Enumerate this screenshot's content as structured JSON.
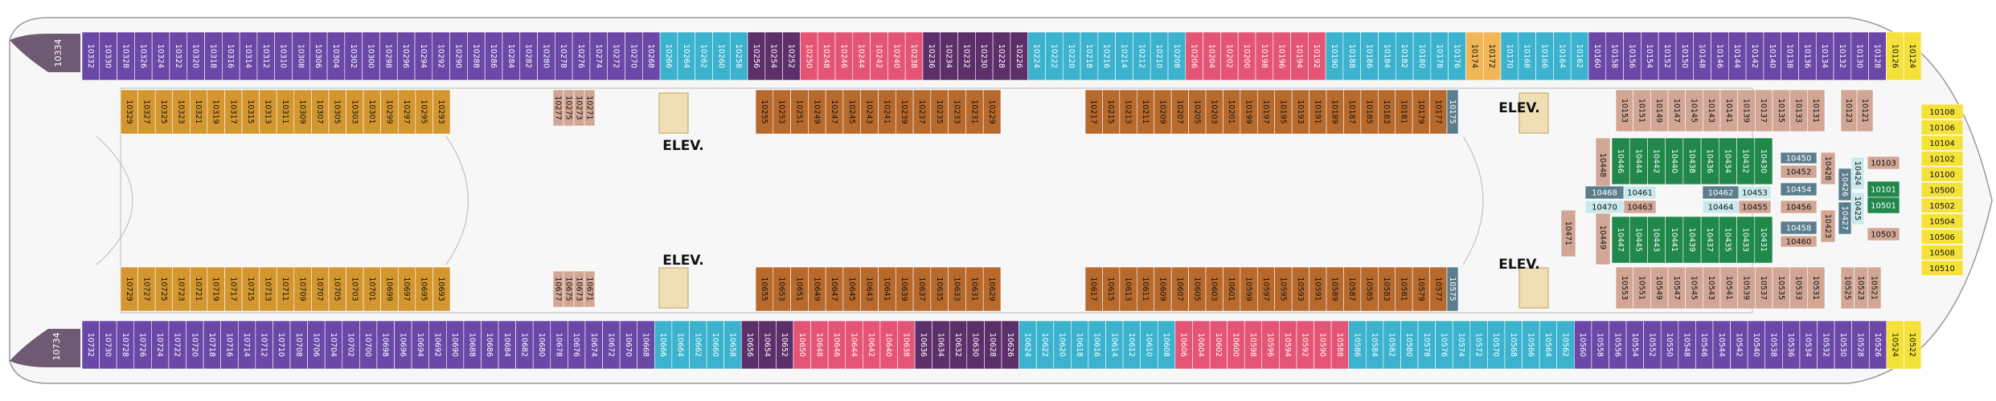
{
  "colors": {
    "purple": "#6b48a8",
    "violet": "#5f3d9c",
    "cyan": "#3bb3cf",
    "pink": "#e55474",
    "darkpurple": "#5c2f6a",
    "gold": "#d4962f",
    "brown": "#b8692c",
    "tan": "#d2a694",
    "slate": "#5c7e8c",
    "green": "#20884a",
    "lightblue": "#c9e9ec",
    "yellow": "#f4e23a",
    "orange": "#f1b655",
    "hull": "#f5f5f5",
    "outline": "#9a9a9a",
    "bow": "#6e5a72"
  },
  "elevators": {
    "label": "ELEV."
  },
  "top_row": {
    "aft": "10334",
    "cabins": [
      "10332",
      "10330",
      "10328",
      "10326",
      "10324",
      "10322",
      "10320",
      "10318",
      "10316",
      "10314",
      "10312",
      "10310",
      "10308",
      "10306",
      "10304",
      "10302",
      "10300",
      "10298",
      "10296",
      "10294",
      "10292",
      "10290",
      "10288",
      "10286",
      "10284",
      "10282",
      "10280",
      "10278",
      "10276",
      "10274",
      "10272",
      "10270",
      "10268",
      "10266",
      "10264",
      "10262",
      "10260",
      "10258",
      "10256",
      "10254",
      "10252",
      "10250",
      "10248",
      "10246",
      "10244",
      "10242",
      "10240",
      "10238",
      "10236",
      "10234",
      "10232",
      "10230",
      "10228",
      "10226",
      "10224",
      "10222",
      "10220",
      "10218",
      "10216",
      "10214",
      "10212",
      "10210",
      "10208",
      "10206",
      "10204",
      "10202",
      "10200",
      "10198",
      "10196",
      "10194",
      "10192",
      "10190",
      "10188",
      "10186",
      "10184",
      "10182",
      "10180",
      "10178",
      "10176",
      "10174",
      "10172",
      "10170",
      "10168",
      "10166",
      "10164",
      "10162",
      "10160",
      "10158",
      "10156",
      "10154",
      "10152",
      "10150",
      "10148",
      "10146",
      "10144",
      "10142",
      "10140",
      "10138",
      "10136",
      "10134",
      "10132",
      "10130",
      "10128",
      "10126",
      "10124"
    ]
  },
  "bottom_row": {
    "aft": "10734",
    "cabins": [
      "10732",
      "10730",
      "10728",
      "10726",
      "10724",
      "10722",
      "10720",
      "10718",
      "10716",
      "10714",
      "10712",
      "10710",
      "10708",
      "10706",
      "10704",
      "10702",
      "10700",
      "10698",
      "10696",
      "10694",
      "10692",
      "10690",
      "10688",
      "10686",
      "10684",
      "10682",
      "10680",
      "10678",
      "10676",
      "10674",
      "10672",
      "10670",
      "10668",
      "10666",
      "10664",
      "10662",
      "10660",
      "10658",
      "10656",
      "10654",
      "10652",
      "10650",
      "10648",
      "10646",
      "10644",
      "10642",
      "10640",
      "10638",
      "10636",
      "10634",
      "10632",
      "10630",
      "10628",
      "10626",
      "10624",
      "10622",
      "10620",
      "10618",
      "10616",
      "10614",
      "10612",
      "10610",
      "10608",
      "10606",
      "10604",
      "10602",
      "10600",
      "10598",
      "10596",
      "10594",
      "10592",
      "10590",
      "10588",
      "10586",
      "10584",
      "10582",
      "10580",
      "10578",
      "10576",
      "10574",
      "10572",
      "10570",
      "10568",
      "10566",
      "10564",
      "10562",
      "10560",
      "10558",
      "10556",
      "10554",
      "10552",
      "10550",
      "10548",
      "10546",
      "10544",
      "10542",
      "10540",
      "10538",
      "10536",
      "10534",
      "10532",
      "10530",
      "10528",
      "10526",
      "10524",
      "10522"
    ]
  },
  "inner_top": {
    "gold": [
      "10329",
      "10327",
      "10325",
      "10323",
      "10321",
      "10319",
      "10317",
      "10315",
      "10313",
      "10311",
      "10309",
      "10307",
      "10305",
      "10303",
      "10301",
      "10299",
      "10297",
      "10295",
      "10293"
    ],
    "tan_small": [
      "10277",
      "10275",
      "10273",
      "10271"
    ],
    "brown_a": [
      "10255",
      "10253",
      "10251",
      "10249",
      "10247",
      "10245",
      "10243",
      "10241",
      "10239",
      "10237",
      "10235",
      "10233",
      "10231",
      "10229"
    ],
    "brown_b": [
      "10217",
      "10215",
      "10213",
      "10211",
      "10209",
      "10207",
      "10205",
      "10203",
      "10201",
      "10199",
      "10197",
      "10195",
      "10193",
      "10191",
      "10189",
      "10187",
      "10185",
      "10183",
      "10181",
      "10179",
      "10177"
    ],
    "slate_end": "10175"
  },
  "inner_bottom": {
    "gold": [
      "10729",
      "10727",
      "10725",
      "10723",
      "10721",
      "10719",
      "10717",
      "10715",
      "10713",
      "10711",
      "10709",
      "10707",
      "10705",
      "10703",
      "10701",
      "10699",
      "10697",
      "10695",
      "10693"
    ],
    "tan_small": [
      "10677",
      "10675",
      "10673",
      "10671"
    ],
    "brown_a": [
      "10655",
      "10653",
      "10651",
      "10649",
      "10647",
      "10645",
      "10643",
      "10641",
      "10639",
      "10637",
      "10635",
      "10633",
      "10631",
      "10629"
    ],
    "brown_b": [
      "10617",
      "10615",
      "10613",
      "10611",
      "10609",
      "10607",
      "10605",
      "10603",
      "10601",
      "10599",
      "10597",
      "10595",
      "10593",
      "10591",
      "10589",
      "10587",
      "10585",
      "10583",
      "10581",
      "10579",
      "10577"
    ],
    "slate_end": "10575"
  },
  "forward_top": {
    "tan": [
      "10153",
      "10151",
      "10149",
      "10147",
      "10145",
      "10143",
      "10141",
      "10139",
      "10137",
      "10135",
      "10133",
      "10131"
    ],
    "t": [
      "10123",
      "10121"
    ]
  },
  "forward_bottom": {
    "tan": [
      "10553",
      "10551",
      "10549",
      "10547",
      "10545",
      "10543",
      "10541",
      "10539",
      "10537",
      "10535",
      "10533",
      "10531"
    ],
    "t": [
      "10525",
      "10523",
      "10521"
    ]
  },
  "forward_left": {
    "top": "10448",
    "mid": "10471",
    "bottom": "10449"
  },
  "greens_top": [
    "10446",
    "10444",
    "10442",
    "10440",
    "10438",
    "10436",
    "10434",
    "10432",
    "10430"
  ],
  "greens_bottom": [
    "10447",
    "10445",
    "10443",
    "10441",
    "10439",
    "10437",
    "10435",
    "10433",
    "10431"
  ],
  "center_cluster": {
    "left": [
      "10468",
      "10461",
      "10470",
      "10463"
    ],
    "right": [
      "10450",
      "10452",
      "10462",
      "10453",
      "10454",
      "10464",
      "10455",
      "10456",
      "10458",
      "10460"
    ],
    "misc": [
      "10428",
      "10426",
      "10424",
      "10427",
      "10425",
      "10423",
      "10103",
      "10101",
      "10501",
      "10503"
    ]
  },
  "bow_suites": [
    "10108",
    "10106",
    "10104",
    "10102",
    "10100",
    "10500",
    "10502",
    "10504",
    "10506",
    "10508",
    "10510"
  ]
}
